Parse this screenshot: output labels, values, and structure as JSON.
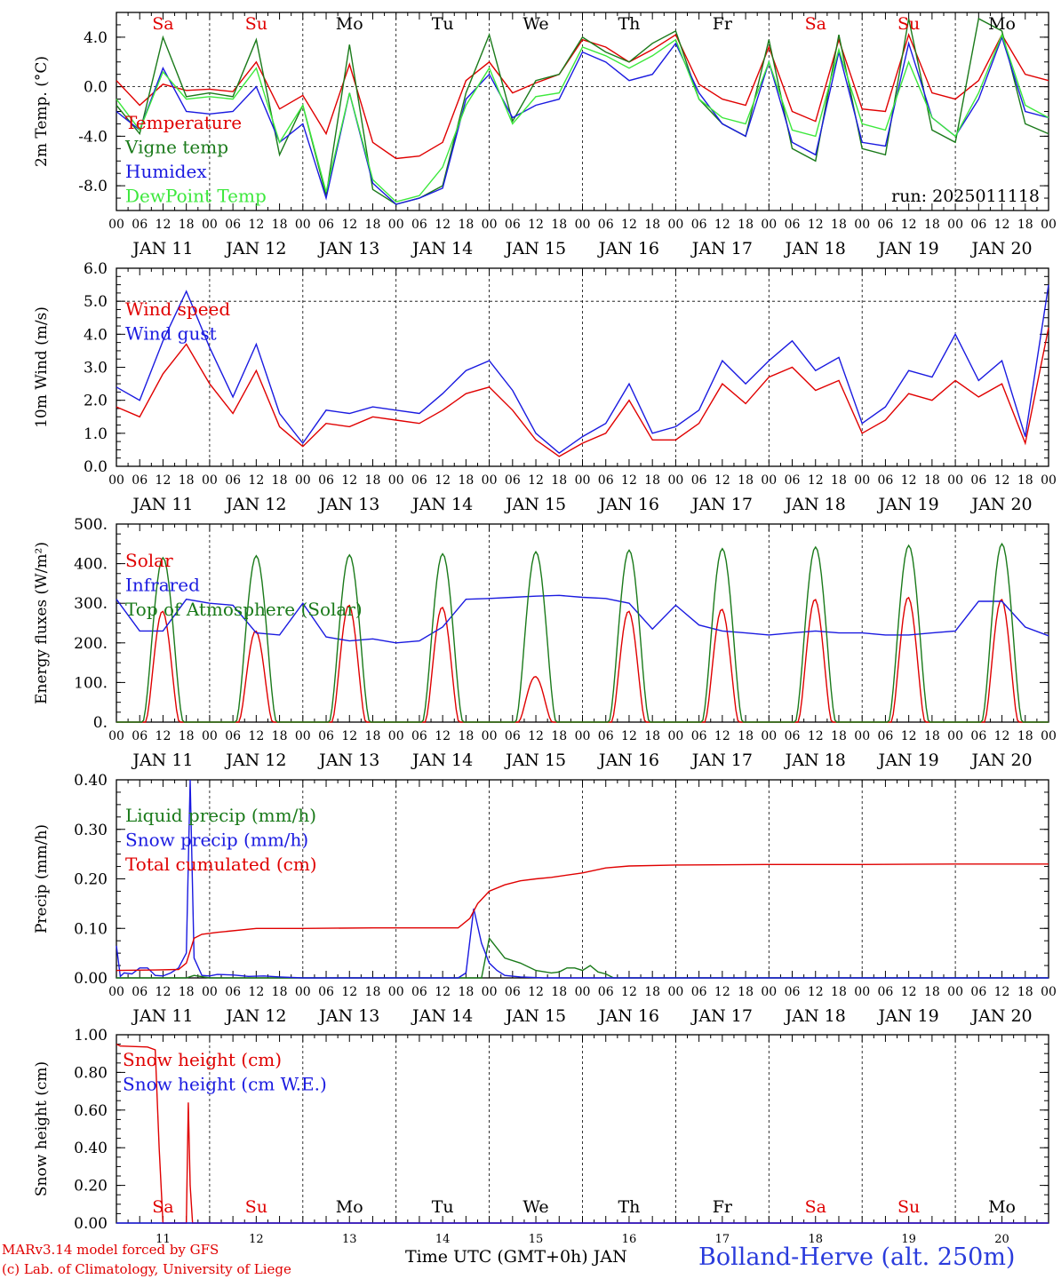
{
  "run_label": "run: 2025011118",
  "x_axis": {
    "hour_ticks": [
      "00",
      "06",
      "12",
      "18"
    ],
    "final_hour": "00",
    "dates": [
      "JAN 11",
      "JAN 12",
      "JAN 13",
      "JAN 14",
      "JAN 15",
      "JAN 16",
      "JAN 17",
      "JAN 18",
      "JAN 19",
      "JAN 20"
    ],
    "weekdays": [
      "Sa",
      "Su",
      "Mo",
      "Tu",
      "We",
      "Th",
      "Fr",
      "Sa",
      "Su",
      "Mo"
    ],
    "weekend_color": "#e00000",
    "weekday_color": "#000000",
    "bottom_day_numbers": [
      "11",
      "12",
      "13",
      "14",
      "15",
      "16",
      "17",
      "18",
      "19",
      "20"
    ],
    "bottom_title": "Time UTC (GMT+0h) JAN"
  },
  "footer": {
    "model_line": "MARv3.14 model forced by GFS",
    "credit_line": "(c) Lab. of Climatology, University of Liege",
    "station": "Bolland-Herve (alt. 250m)",
    "station_color": "#2a3bdc",
    "credit_color": "#e00000"
  },
  "chart_data": [
    {
      "type": "line",
      "ylabel": "2m Temp. (°C)",
      "ylim": [
        -10,
        6
      ],
      "yticks": [
        {
          "v": 4,
          "t": "4.0"
        },
        {
          "v": 0,
          "t": "0.0"
        },
        {
          "v": -4,
          "t": "-4.0"
        },
        {
          "v": -8,
          "t": "-8.0"
        }
      ],
      "zero_line": 0,
      "x_hours": [
        0,
        6,
        12,
        18,
        24,
        30,
        36,
        42,
        48,
        54,
        60,
        66,
        72,
        78,
        84,
        90,
        96,
        102,
        108,
        114,
        120,
        126,
        132,
        138,
        144,
        150,
        156,
        162,
        168,
        174,
        180,
        186,
        192,
        198,
        204,
        210,
        216,
        222,
        228,
        234,
        240
      ],
      "series": [
        {
          "name": "Temperature",
          "color": "#e00000",
          "values": [
            0.5,
            -1.5,
            0.2,
            -0.3,
            -0.2,
            -0.4,
            2.0,
            -1.8,
            -0.7,
            -3.8,
            1.8,
            -4.5,
            -5.8,
            -5.6,
            -4.5,
            0.5,
            2.0,
            -0.5,
            0.3,
            1.0,
            3.8,
            3.2,
            2.0,
            3.0,
            4.2,
            0.2,
            -1.0,
            -1.5,
            3.2,
            -2.0,
            -2.8,
            3.8,
            -1.8,
            -2.0,
            4.2,
            -0.5,
            -1.0,
            0.5,
            4.2,
            1.0,
            0.5
          ]
        },
        {
          "name": "Vigne temp",
          "color": "#1a7a1a",
          "values": [
            -1.5,
            -3.8,
            4.0,
            -0.8,
            -0.5,
            -0.8,
            3.8,
            -5.5,
            -1.5,
            -8.8,
            3.4,
            -8.3,
            -9.5,
            -9.0,
            -8.0,
            -0.5,
            4.2,
            -2.8,
            0.5,
            1.0,
            4.0,
            2.8,
            2.0,
            3.5,
            4.5,
            -1.0,
            -3.0,
            -4.0,
            3.8,
            -5.0,
            -6.0,
            4.2,
            -5.0,
            -5.5,
            5.5,
            -3.5,
            -4.5,
            5.5,
            4.5,
            -3.0,
            -3.8
          ]
        },
        {
          "name": "Humidex",
          "color": "#1a1ae0",
          "values": [
            -2.0,
            -3.5,
            1.5,
            -2.0,
            -2.2,
            -2.0,
            0.0,
            -4.5,
            -3.0,
            -9.0,
            -0.5,
            -7.8,
            -9.5,
            -9.0,
            -8.2,
            -1.0,
            1.0,
            -2.5,
            -1.5,
            -1.0,
            2.8,
            2.0,
            0.5,
            1.0,
            3.5,
            -0.5,
            -3.0,
            -4.0,
            2.0,
            -4.5,
            -5.5,
            2.8,
            -4.5,
            -4.8,
            3.5,
            -2.5,
            -4.0,
            -1.0,
            4.0,
            -2.0,
            -2.5
          ]
        },
        {
          "name": "DewPoint Temp",
          "color": "#3ce83c",
          "values": [
            -1.0,
            -3.5,
            1.2,
            -1.0,
            -0.8,
            -1.0,
            1.5,
            -4.5,
            -1.5,
            -8.5,
            -0.5,
            -7.5,
            -9.3,
            -8.8,
            -6.5,
            -1.5,
            1.5,
            -3.0,
            -0.8,
            -0.5,
            3.2,
            2.5,
            1.5,
            2.5,
            3.8,
            -1.0,
            -2.5,
            -3.0,
            2.0,
            -3.5,
            -4.0,
            3.0,
            -3.0,
            -3.5,
            2.0,
            -2.5,
            -4.0,
            -0.5,
            4.2,
            -1.5,
            -2.5
          ]
        }
      ]
    },
    {
      "type": "line",
      "ylabel": "10m Wind (m/s)",
      "ylim": [
        0,
        6
      ],
      "yticks": [
        {
          "v": 6,
          "t": "6.0"
        },
        {
          "v": 5,
          "t": "5.0"
        },
        {
          "v": 4,
          "t": "4.0"
        },
        {
          "v": 3,
          "t": "3.0"
        },
        {
          "v": 2,
          "t": "2.0"
        },
        {
          "v": 1,
          "t": "1.0"
        },
        {
          "v": 0,
          "t": "0.0"
        }
      ],
      "ref_line": 5,
      "x_hours": [
        0,
        6,
        12,
        18,
        24,
        30,
        36,
        42,
        48,
        54,
        60,
        66,
        72,
        78,
        84,
        90,
        96,
        102,
        108,
        114,
        120,
        126,
        132,
        138,
        144,
        150,
        156,
        162,
        168,
        174,
        180,
        186,
        192,
        198,
        204,
        210,
        216,
        222,
        228,
        234,
        240
      ],
      "series": [
        {
          "name": "Wind speed",
          "color": "#e00000",
          "values": [
            1.8,
            1.5,
            2.8,
            3.7,
            2.5,
            1.6,
            2.9,
            1.2,
            0.6,
            1.3,
            1.2,
            1.5,
            1.4,
            1.3,
            1.7,
            2.2,
            2.4,
            1.7,
            0.8,
            0.3,
            0.7,
            1.0,
            2.0,
            0.8,
            0.8,
            1.3,
            2.5,
            1.9,
            2.7,
            3.0,
            2.3,
            2.6,
            1.0,
            1.4,
            2.2,
            2.0,
            2.6,
            2.1,
            2.5,
            0.7,
            4.2
          ]
        },
        {
          "name": "Wind gust",
          "color": "#1a1ae0",
          "values": [
            2.4,
            2.0,
            3.8,
            5.3,
            3.6,
            2.1,
            3.7,
            1.6,
            0.7,
            1.7,
            1.6,
            1.8,
            1.7,
            1.6,
            2.2,
            2.9,
            3.2,
            2.3,
            1.0,
            0.4,
            0.9,
            1.3,
            2.5,
            1.0,
            1.2,
            1.7,
            3.2,
            2.5,
            3.2,
            3.8,
            2.9,
            3.3,
            1.3,
            1.8,
            2.9,
            2.7,
            4.0,
            2.6,
            3.2,
            0.9,
            5.5
          ]
        }
      ]
    },
    {
      "type": "line",
      "ylabel": "Energy fluxes (W/m²)",
      "ylim": [
        0,
        500
      ],
      "yticks": [
        {
          "v": 500,
          "t": "500."
        },
        {
          "v": 400,
          "t": "400."
        },
        {
          "v": 300,
          "t": "300."
        },
        {
          "v": 200,
          "t": "200."
        },
        {
          "v": 100,
          "t": "100."
        },
        {
          "v": 0,
          "t": "0."
        }
      ],
      "daily_peaks": {
        "solar": [
          280,
          230,
          295,
          290,
          115,
          280,
          285,
          310,
          315,
          310
        ],
        "toa": [
          415,
          420,
          422,
          425,
          430,
          434,
          438,
          442,
          446,
          450
        ]
      },
      "infrared_x": [
        0,
        6,
        12,
        18,
        24,
        30,
        36,
        42,
        48,
        54,
        60,
        66,
        72,
        78,
        84,
        90,
        96,
        102,
        108,
        114,
        120,
        126,
        132,
        138,
        144,
        150,
        156,
        162,
        168,
        174,
        180,
        186,
        192,
        198,
        204,
        210,
        216,
        222,
        228,
        234,
        240
      ],
      "series": [
        {
          "name": "Solar",
          "color": "#e00000",
          "values": []
        },
        {
          "name": "Infrared",
          "color": "#1a1ae0",
          "values": [
            310,
            230,
            230,
            310,
            300,
            295,
            225,
            220,
            300,
            215,
            205,
            210,
            200,
            205,
            240,
            310,
            312,
            315,
            318,
            320,
            315,
            312,
            300,
            235,
            295,
            245,
            230,
            225,
            220,
            225,
            230,
            225,
            225,
            220,
            220,
            225,
            230,
            305,
            305,
            240,
            218
          ]
        },
        {
          "name": "Top of Atmosphere (Solar)",
          "color": "#1a7a1a",
          "values": []
        }
      ]
    },
    {
      "type": "line",
      "ylabel": "Precip (mm/h)",
      "ylim": [
        0,
        0.4
      ],
      "yticks": [
        {
          "v": 0.4,
          "t": "0.40"
        },
        {
          "v": 0.3,
          "t": "0.30"
        },
        {
          "v": 0.2,
          "t": "0.20"
        },
        {
          "v": 0.1,
          "t": "0.10"
        },
        {
          "v": 0,
          "t": "0.00"
        }
      ],
      "series": [
        {
          "name": "Liquid precip (mm/h)",
          "color": "#1a7a1a",
          "x": [
            0,
            18,
            20,
            24,
            90,
            94,
            96,
            100,
            104,
            108,
            112,
            114,
            116,
            118,
            120,
            122,
            124,
            126,
            128,
            240
          ],
          "values": [
            0,
            0,
            0.005,
            0,
            0,
            0,
            0.08,
            0.04,
            0.03,
            0.015,
            0.01,
            0.012,
            0.02,
            0.02,
            0.015,
            0.025,
            0.012,
            0.008,
            0,
            0
          ]
        },
        {
          "name": "Snow precip (mm/h)",
          "color": "#1a1ae0",
          "x": [
            0,
            1,
            2,
            4,
            6,
            8,
            10,
            12,
            14,
            16,
            18,
            19,
            20,
            22,
            24,
            26,
            30,
            34,
            38,
            42,
            48,
            88,
            90,
            92,
            94,
            96,
            98,
            100,
            104,
            110,
            240
          ],
          "values": [
            0.065,
            0.003,
            0.01,
            0.008,
            0.02,
            0.02,
            0.005,
            0.004,
            0.01,
            0.02,
            0.05,
            0.4,
            0.04,
            0.005,
            0.004,
            0.007,
            0.006,
            0.003,
            0.004,
            0.002,
            0,
            0,
            0.01,
            0.14,
            0.07,
            0.03,
            0.015,
            0.005,
            0.002,
            0,
            0
          ]
        },
        {
          "name": "Total cumulated (cm)",
          "color": "#e00000",
          "x": [
            0,
            10,
            16,
            18,
            20,
            22,
            26,
            36,
            48,
            66,
            88,
            91,
            93,
            96,
            100,
            104,
            108,
            112,
            120,
            126,
            132,
            144,
            168,
            192,
            216,
            240
          ],
          "values": [
            0.015,
            0.016,
            0.017,
            0.03,
            0.08,
            0.088,
            0.092,
            0.1,
            0.1,
            0.101,
            0.101,
            0.12,
            0.15,
            0.175,
            0.188,
            0.196,
            0.2,
            0.203,
            0.212,
            0.222,
            0.226,
            0.228,
            0.229,
            0.229,
            0.23,
            0.23
          ]
        }
      ]
    },
    {
      "type": "line",
      "ylabel": "Snow height (cm)",
      "ylim": [
        0,
        1
      ],
      "yticks": [
        {
          "v": 1,
          "t": "1.00"
        },
        {
          "v": 0.8,
          "t": "0.80"
        },
        {
          "v": 0.6,
          "t": "0.60"
        },
        {
          "v": 0.4,
          "t": "0.40"
        },
        {
          "v": 0.2,
          "t": "0.20"
        },
        {
          "v": 0,
          "t": "0.00"
        }
      ],
      "series": [
        {
          "name": "Snow height (cm)",
          "color": "#e00000",
          "x": [
            0,
            1,
            8,
            10,
            11,
            12,
            18,
            18.5,
            19,
            19.6,
            20,
            240
          ],
          "values": [
            0.95,
            0.94,
            0.935,
            0.92,
            0.4,
            0,
            0,
            0.64,
            0.2,
            0,
            0,
            0
          ]
        },
        {
          "name": "Snow height (cm W.E.)",
          "color": "#1a1ae0",
          "x": [
            0,
            240
          ],
          "values": [
            0,
            0
          ]
        }
      ]
    }
  ]
}
